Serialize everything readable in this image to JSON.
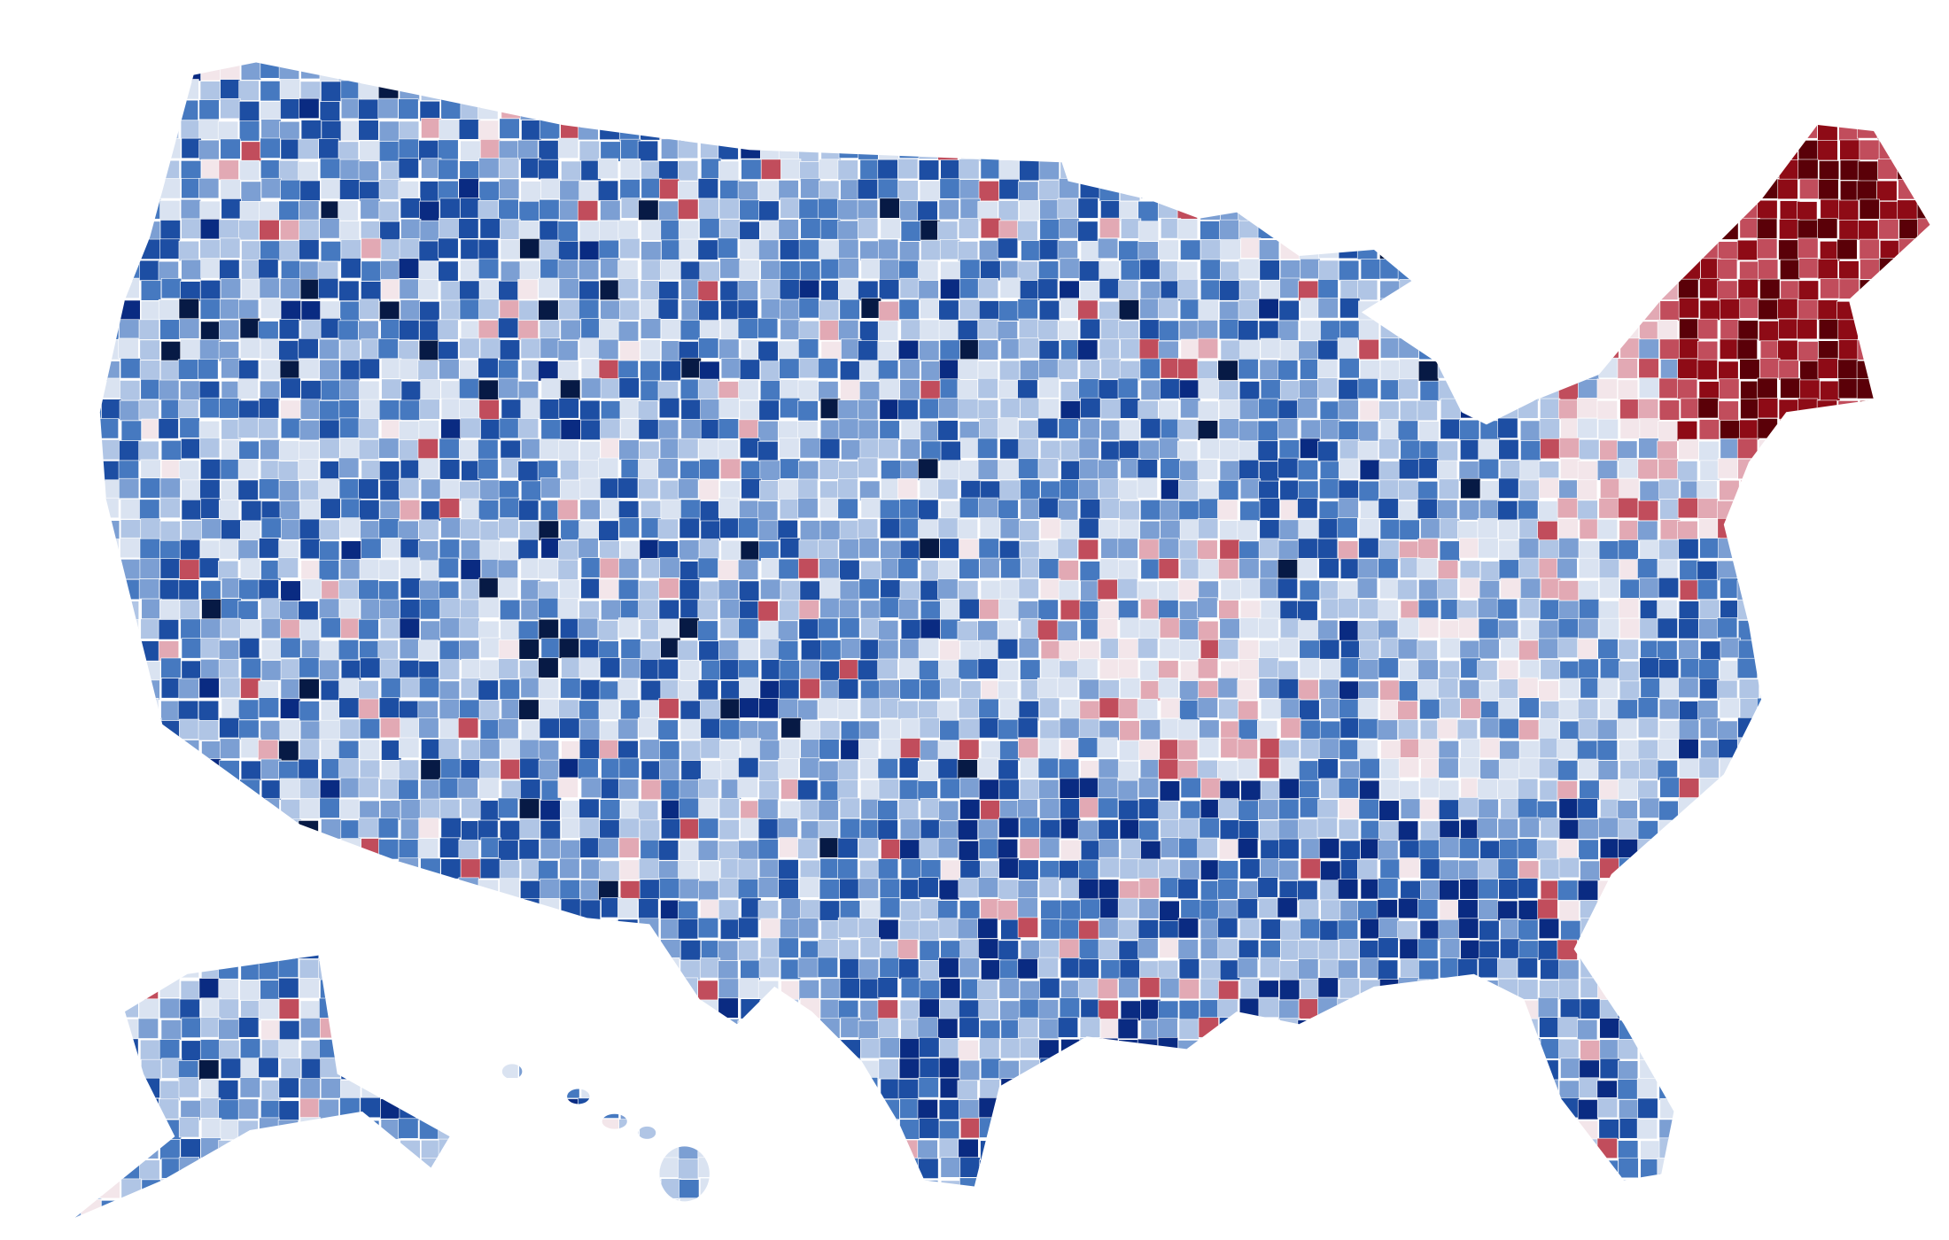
{
  "map": {
    "type": "choropleth",
    "palette": [
      "#071a45",
      "#0a2b82",
      "#1d4ea3",
      "#4679c0",
      "#7c9fd3",
      "#b0c5e5",
      "#dae3f1",
      "#f3e6ea",
      "#e2a9b4",
      "#c14d5c",
      "#8e0b16",
      "#5a0008"
    ]
  }
}
